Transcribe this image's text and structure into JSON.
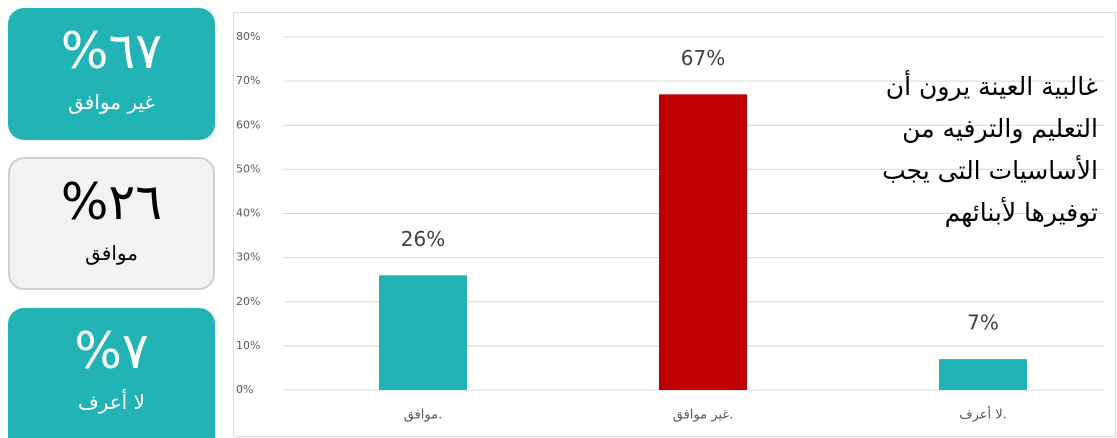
{
  "cards": [
    {
      "value": "%٦٧",
      "label": "غير موافق"
    },
    {
      "value": "%٢٦",
      "label": "موافق"
    },
    {
      "value": "%٧",
      "label": "لا أعرف"
    }
  ],
  "chart_data": {
    "type": "bar",
    "categories": [
      "موافق.",
      "غير موافق.",
      "لا أعرف."
    ],
    "values": [
      26,
      67,
      7
    ],
    "value_labels": [
      "26%",
      "67%",
      "7%"
    ],
    "colors": [
      "#22b3b5",
      "#c00000",
      "#22b3b5"
    ],
    "ylim": [
      0,
      80
    ],
    "yticks": [
      {
        "value": 0,
        "label": "0%"
      },
      {
        "value": 10,
        "label": "10%"
      },
      {
        "value": 20,
        "label": "20%"
      },
      {
        "value": 30,
        "label": "30%"
      },
      {
        "value": 40,
        "label": "40%"
      },
      {
        "value": 50,
        "label": "50%"
      },
      {
        "value": 60,
        "label": "60%"
      },
      {
        "value": 70,
        "label": "70%"
      },
      {
        "value": 80,
        "label": "80%"
      }
    ],
    "grid": true,
    "annotation": [
      "غالبية العينة يرون أن",
      "التعليم والترفيه من",
      "الأساسيات التى يجب",
      "توفيرها لأبنائهم"
    ]
  }
}
